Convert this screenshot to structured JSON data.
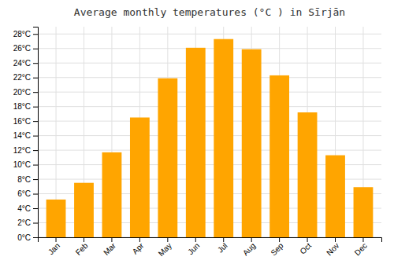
{
  "chart_data": {
    "type": "bar",
    "title": "Average monthly temperatures (°C ) in Sīrjān",
    "categories": [
      "Jan",
      "Feb",
      "Mar",
      "Apr",
      "May",
      "Jun",
      "Jul",
      "Aug",
      "Sep",
      "Oct",
      "Nov",
      "Dec"
    ],
    "values": [
      5.2,
      7.5,
      11.7,
      16.5,
      21.9,
      26.1,
      27.3,
      25.9,
      22.3,
      17.2,
      11.3,
      6.9
    ],
    "color": "#FFA500",
    "ylim": [
      0,
      29
    ],
    "yticks": [
      {
        "value": 0,
        "label": "0°C"
      },
      {
        "value": 2,
        "label": "2°C"
      },
      {
        "value": 4,
        "label": "4°C"
      },
      {
        "value": 6,
        "label": "6°C"
      },
      {
        "value": 8,
        "label": "8°C"
      },
      {
        "value": 10,
        "label": "10°C"
      },
      {
        "value": 12,
        "label": "12°C"
      },
      {
        "value": 14,
        "label": "14°C"
      },
      {
        "value": 16,
        "label": "16°C"
      },
      {
        "value": 18,
        "label": "18°C"
      },
      {
        "value": 20,
        "label": "20°C"
      },
      {
        "value": 22,
        "label": "22°C"
      },
      {
        "value": 24,
        "label": "24°C"
      },
      {
        "value": 26,
        "label": "26°C"
      },
      {
        "value": 28,
        "label": "28°C"
      }
    ],
    "grid": true
  }
}
